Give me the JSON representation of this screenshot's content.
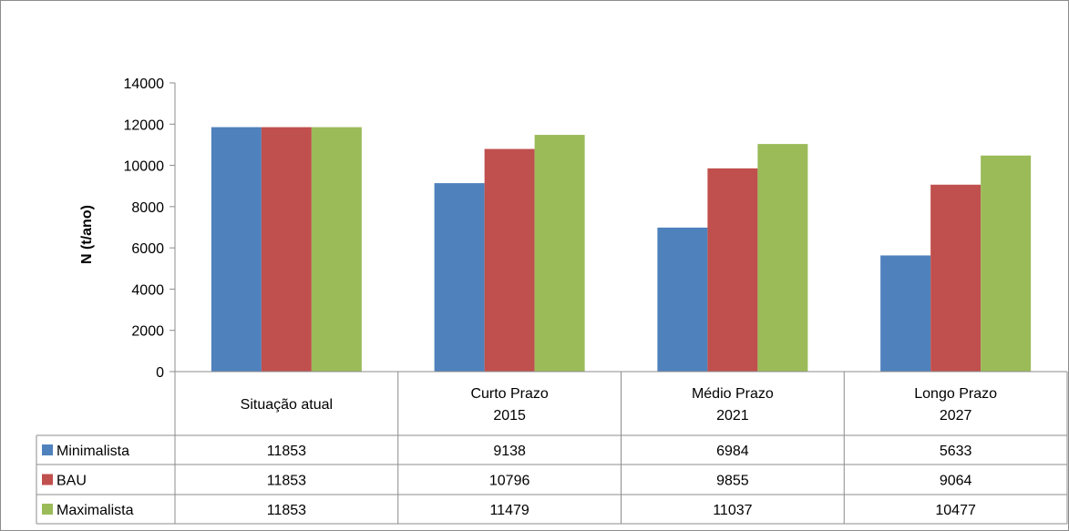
{
  "chart_data": {
    "type": "bar",
    "title": "",
    "xlabel": "",
    "ylabel": "N (t/ano)",
    "ylim": [
      0,
      14000
    ],
    "yticks": [
      0,
      2000,
      4000,
      6000,
      8000,
      10000,
      12000,
      14000
    ],
    "grid": false,
    "legend": "data-table",
    "categories": [
      [
        "Situação atual"
      ],
      [
        "Curto Prazo",
        "2015"
      ],
      [
        "Médio Prazo",
        "2021"
      ],
      [
        "Longo Prazo",
        "2027"
      ]
    ],
    "series": [
      {
        "name": "Minimalista",
        "color": "#4f81bd",
        "values": [
          11853,
          9138,
          6984,
          5633
        ]
      },
      {
        "name": "BAU",
        "color": "#c0504d",
        "values": [
          11853,
          10796,
          9855,
          9064
        ]
      },
      {
        "name": "Maximalista",
        "color": "#9bbb59",
        "values": [
          11853,
          11479,
          11037,
          10477
        ]
      }
    ]
  }
}
